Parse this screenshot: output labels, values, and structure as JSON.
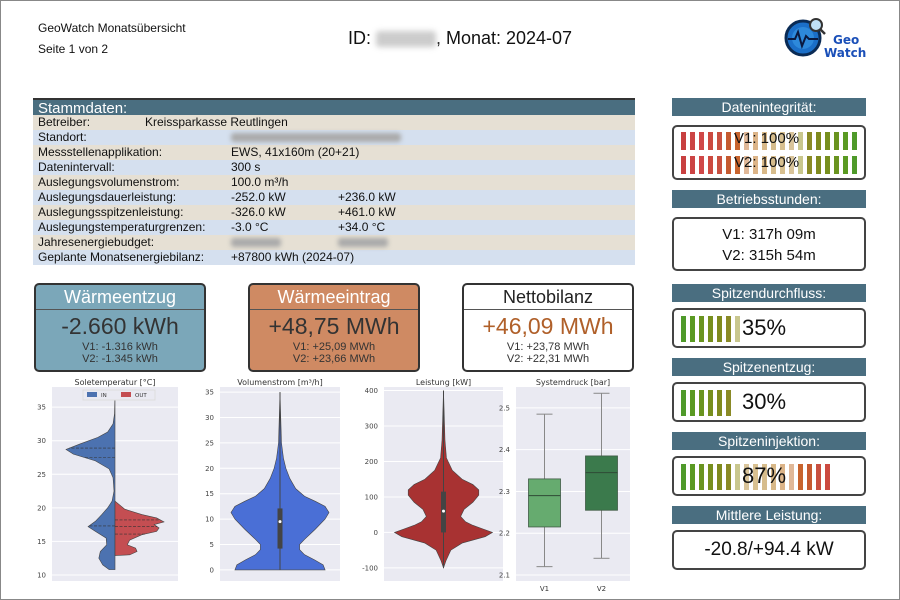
{
  "header": {
    "app_title": "GeoWatch Monatsübersicht",
    "page": "Seite 1 von 2",
    "id_label": "ID:",
    "month_label": ", Monat: 2024-07",
    "logo_text": "Geo Watch"
  },
  "stammdaten": {
    "title": "Stammdaten:",
    "rows": [
      {
        "key": "Betreiber:",
        "v1": "Kreissparkasse Reutlingen",
        "v2": ""
      },
      {
        "key": "Standort:",
        "v1": "",
        "v2": "",
        "blurred": true
      },
      {
        "key": "Messstellenapplikation:",
        "v1": "EWS, 41x160m (20+21)",
        "v2": ""
      },
      {
        "key": "Datenintervall:",
        "v1": "300 s",
        "v2": ""
      },
      {
        "key": "Auslegungsvolumenstrom:",
        "v1": "100.0 m³/h",
        "v2": ""
      },
      {
        "key": "Auslegungsdauerleistung:",
        "v1": "-252.0  kW",
        "v2": "+236.0  kW"
      },
      {
        "key": "Auslegungsspitzenleistung:",
        "v1": "-326.0  kW",
        "v2": "+461.0  kW"
      },
      {
        "key": "Auslegungstemperaturgrenzen:",
        "v1": "-3.0  °C",
        "v2": "+34.0  °C"
      },
      {
        "key": "Jahresenergiebudget:",
        "v1": "",
        "v2": "",
        "blurred": true
      },
      {
        "key": "Geplante Monatsenergiebilanz:",
        "v1": "+87800  kWh  (2024-07)",
        "v2": ""
      }
    ]
  },
  "summary": [
    {
      "title": "Wärmeentzug",
      "total": "-2.660 kWh",
      "v1": "V1: -1.316 kWh",
      "v2": "V2: -1.345 kWh",
      "color": "#7ba7b9"
    },
    {
      "title": "Wärmeeintrag",
      "total": "+48,75 MWh",
      "v1": "V1: +25,09 MWh",
      "v2": "V2: +23,66 MWh",
      "color": "#cf8a63"
    },
    {
      "title": "Nettobilanz",
      "total": "+46,09 MWh",
      "v1": "V1: +23,78 MWh",
      "v2": "V2: +22,31 MWh",
      "color": "#ffffff",
      "total_color": "#b0602a"
    }
  ],
  "right": {
    "datenintegritaet": {
      "title": "Datenintegrität:",
      "v1": "V1: 100%",
      "v2": "V2: 100%",
      "v1_percent": 100,
      "v2_percent": 100
    },
    "betriebsstunden": {
      "title": "Betriebsstunden:",
      "v1": "V1: 317h 09m",
      "v2": "V2: 315h 54m"
    },
    "spitzendurchfluss": {
      "title": "Spitzendurchfluss:",
      "value": "35%",
      "percent": 35
    },
    "spitzenentzug": {
      "title": "Spitzenentzug:",
      "value": "30%",
      "percent": 30
    },
    "spitzeninjektion": {
      "title": "Spitzeninjektion:",
      "value": "87%",
      "percent": 87
    },
    "mittlere_leistung": {
      "title": "Mittlere Leistung:",
      "value": "-20.8/+94.4 kW"
    }
  },
  "chart_data": [
    {
      "type": "violin",
      "title": "Soletemperatur [°C]",
      "ylim": [
        10,
        38
      ],
      "yticks": [
        10,
        15,
        20,
        25,
        30,
        35
      ],
      "legend": [
        "IN",
        "OUT"
      ],
      "legend_placement": "top-center",
      "grid": true,
      "series": [
        {
          "name": "IN",
          "color": "#4c72b0",
          "side": "left",
          "quartiles": [
            17.3,
            27.5,
            28.9
          ],
          "density": [
            [
              10.8,
              0.12
            ],
            [
              11.5,
              0.25
            ],
            [
              12.5,
              0.33
            ],
            [
              13.5,
              0.3
            ],
            [
              14.5,
              0.17
            ],
            [
              15.5,
              0.18
            ],
            [
              16.5,
              0.4
            ],
            [
              17.2,
              0.55
            ],
            [
              18,
              0.4
            ],
            [
              19,
              0.27
            ],
            [
              20,
              0.15
            ],
            [
              21,
              0.06
            ],
            [
              22.5,
              0.02
            ],
            [
              24.5,
              0.04
            ],
            [
              25.8,
              0.12
            ],
            [
              27,
              0.4
            ],
            [
              28,
              0.85
            ],
            [
              28.7,
              1.0
            ],
            [
              29.5,
              0.72
            ],
            [
              30.5,
              0.35
            ],
            [
              31.3,
              0.15
            ],
            [
              32.5,
              0.04
            ],
            [
              34,
              0.01
            ],
            [
              37,
              0
            ]
          ]
        },
        {
          "name": "OUT",
          "color": "#c44e52",
          "side": "right",
          "quartiles": [
            16.1,
            17.2,
            18.2
          ],
          "density": [
            [
              12.9,
              0.0
            ],
            [
              13,
              0.3
            ],
            [
              13.5,
              0.45
            ],
            [
              14,
              0.42
            ],
            [
              14.5,
              0.25
            ],
            [
              15.2,
              0.3
            ],
            [
              16,
              0.55
            ],
            [
              16.5,
              0.85
            ],
            [
              17,
              0.9
            ],
            [
              17.5,
              0.8
            ],
            [
              17.9,
              1.0
            ],
            [
              18.5,
              0.85
            ],
            [
              19,
              0.55
            ],
            [
              19.8,
              0.2
            ],
            [
              21,
              0
            ]
          ]
        }
      ]
    },
    {
      "type": "violin",
      "title": "Volumenstrom [m³/h]",
      "ylim": [
        -1,
        36
      ],
      "yticks": [
        0,
        5,
        10,
        15,
        20,
        25,
        30,
        35
      ],
      "grid": true,
      "series": [
        {
          "color": "#4a6fd6",
          "side": "both",
          "box": {
            "q1": 4.2,
            "median": 9.5,
            "q3": 12.1
          },
          "density": [
            [
              0,
              0.92
            ],
            [
              1,
              0.88
            ],
            [
              2,
              0.7
            ],
            [
              3,
              0.5
            ],
            [
              4,
              0.4
            ],
            [
              5,
              0.4
            ],
            [
              6,
              0.5
            ],
            [
              8,
              0.72
            ],
            [
              10,
              0.92
            ],
            [
              11.3,
              1.0
            ],
            [
              12.5,
              0.92
            ],
            [
              13.5,
              0.72
            ],
            [
              14.5,
              0.5
            ],
            [
              16,
              0.32
            ],
            [
              18,
              0.2
            ],
            [
              20,
              0.12
            ],
            [
              22,
              0.07
            ],
            [
              25,
              0.03
            ],
            [
              30,
              0.015
            ],
            [
              35,
              0
            ]
          ]
        }
      ]
    },
    {
      "type": "violin",
      "title": "Leistung [kW]",
      "ylim": [
        -120,
        410
      ],
      "yticks": [
        -100,
        0,
        100,
        200,
        300,
        400
      ],
      "grid": true,
      "series": [
        {
          "color": "#a83232",
          "side": "both",
          "box": {
            "q1": 0,
            "median": 60,
            "q3": 115
          },
          "density": [
            [
              -100,
              0
            ],
            [
              -80,
              0.05
            ],
            [
              -50,
              0.15
            ],
            [
              -30,
              0.38
            ],
            [
              -12,
              0.85
            ],
            [
              0,
              1.0
            ],
            [
              10,
              0.8
            ],
            [
              20,
              0.6
            ],
            [
              30,
              0.45
            ],
            [
              45,
              0.35
            ],
            [
              65,
              0.42
            ],
            [
              85,
              0.6
            ],
            [
              105,
              0.72
            ],
            [
              120,
              0.72
            ],
            [
              135,
              0.6
            ],
            [
              150,
              0.38
            ],
            [
              175,
              0.18
            ],
            [
              210,
              0.06
            ],
            [
              260,
              0.03
            ],
            [
              330,
              0.015
            ],
            [
              400,
              0
            ]
          ]
        }
      ]
    },
    {
      "type": "box",
      "title": "Systemdruck [bar]",
      "ylim": [
        2.1,
        2.55
      ],
      "yticks": [
        2.1,
        2.2,
        2.3,
        2.4,
        2.5
      ],
      "categories": [
        "V1",
        "V2"
      ],
      "grid": true,
      "series": [
        {
          "name": "V1",
          "color": "#66ab6f",
          "whisker_low": 2.12,
          "q1": 2.215,
          "median": 2.29,
          "q3": 2.33,
          "whisker_high": 2.485
        },
        {
          "name": "V2",
          "color": "#3b7a4c",
          "whisker_low": 2.14,
          "q1": 2.255,
          "median": 2.345,
          "q3": 2.385,
          "whisker_high": 2.535
        }
      ]
    }
  ]
}
